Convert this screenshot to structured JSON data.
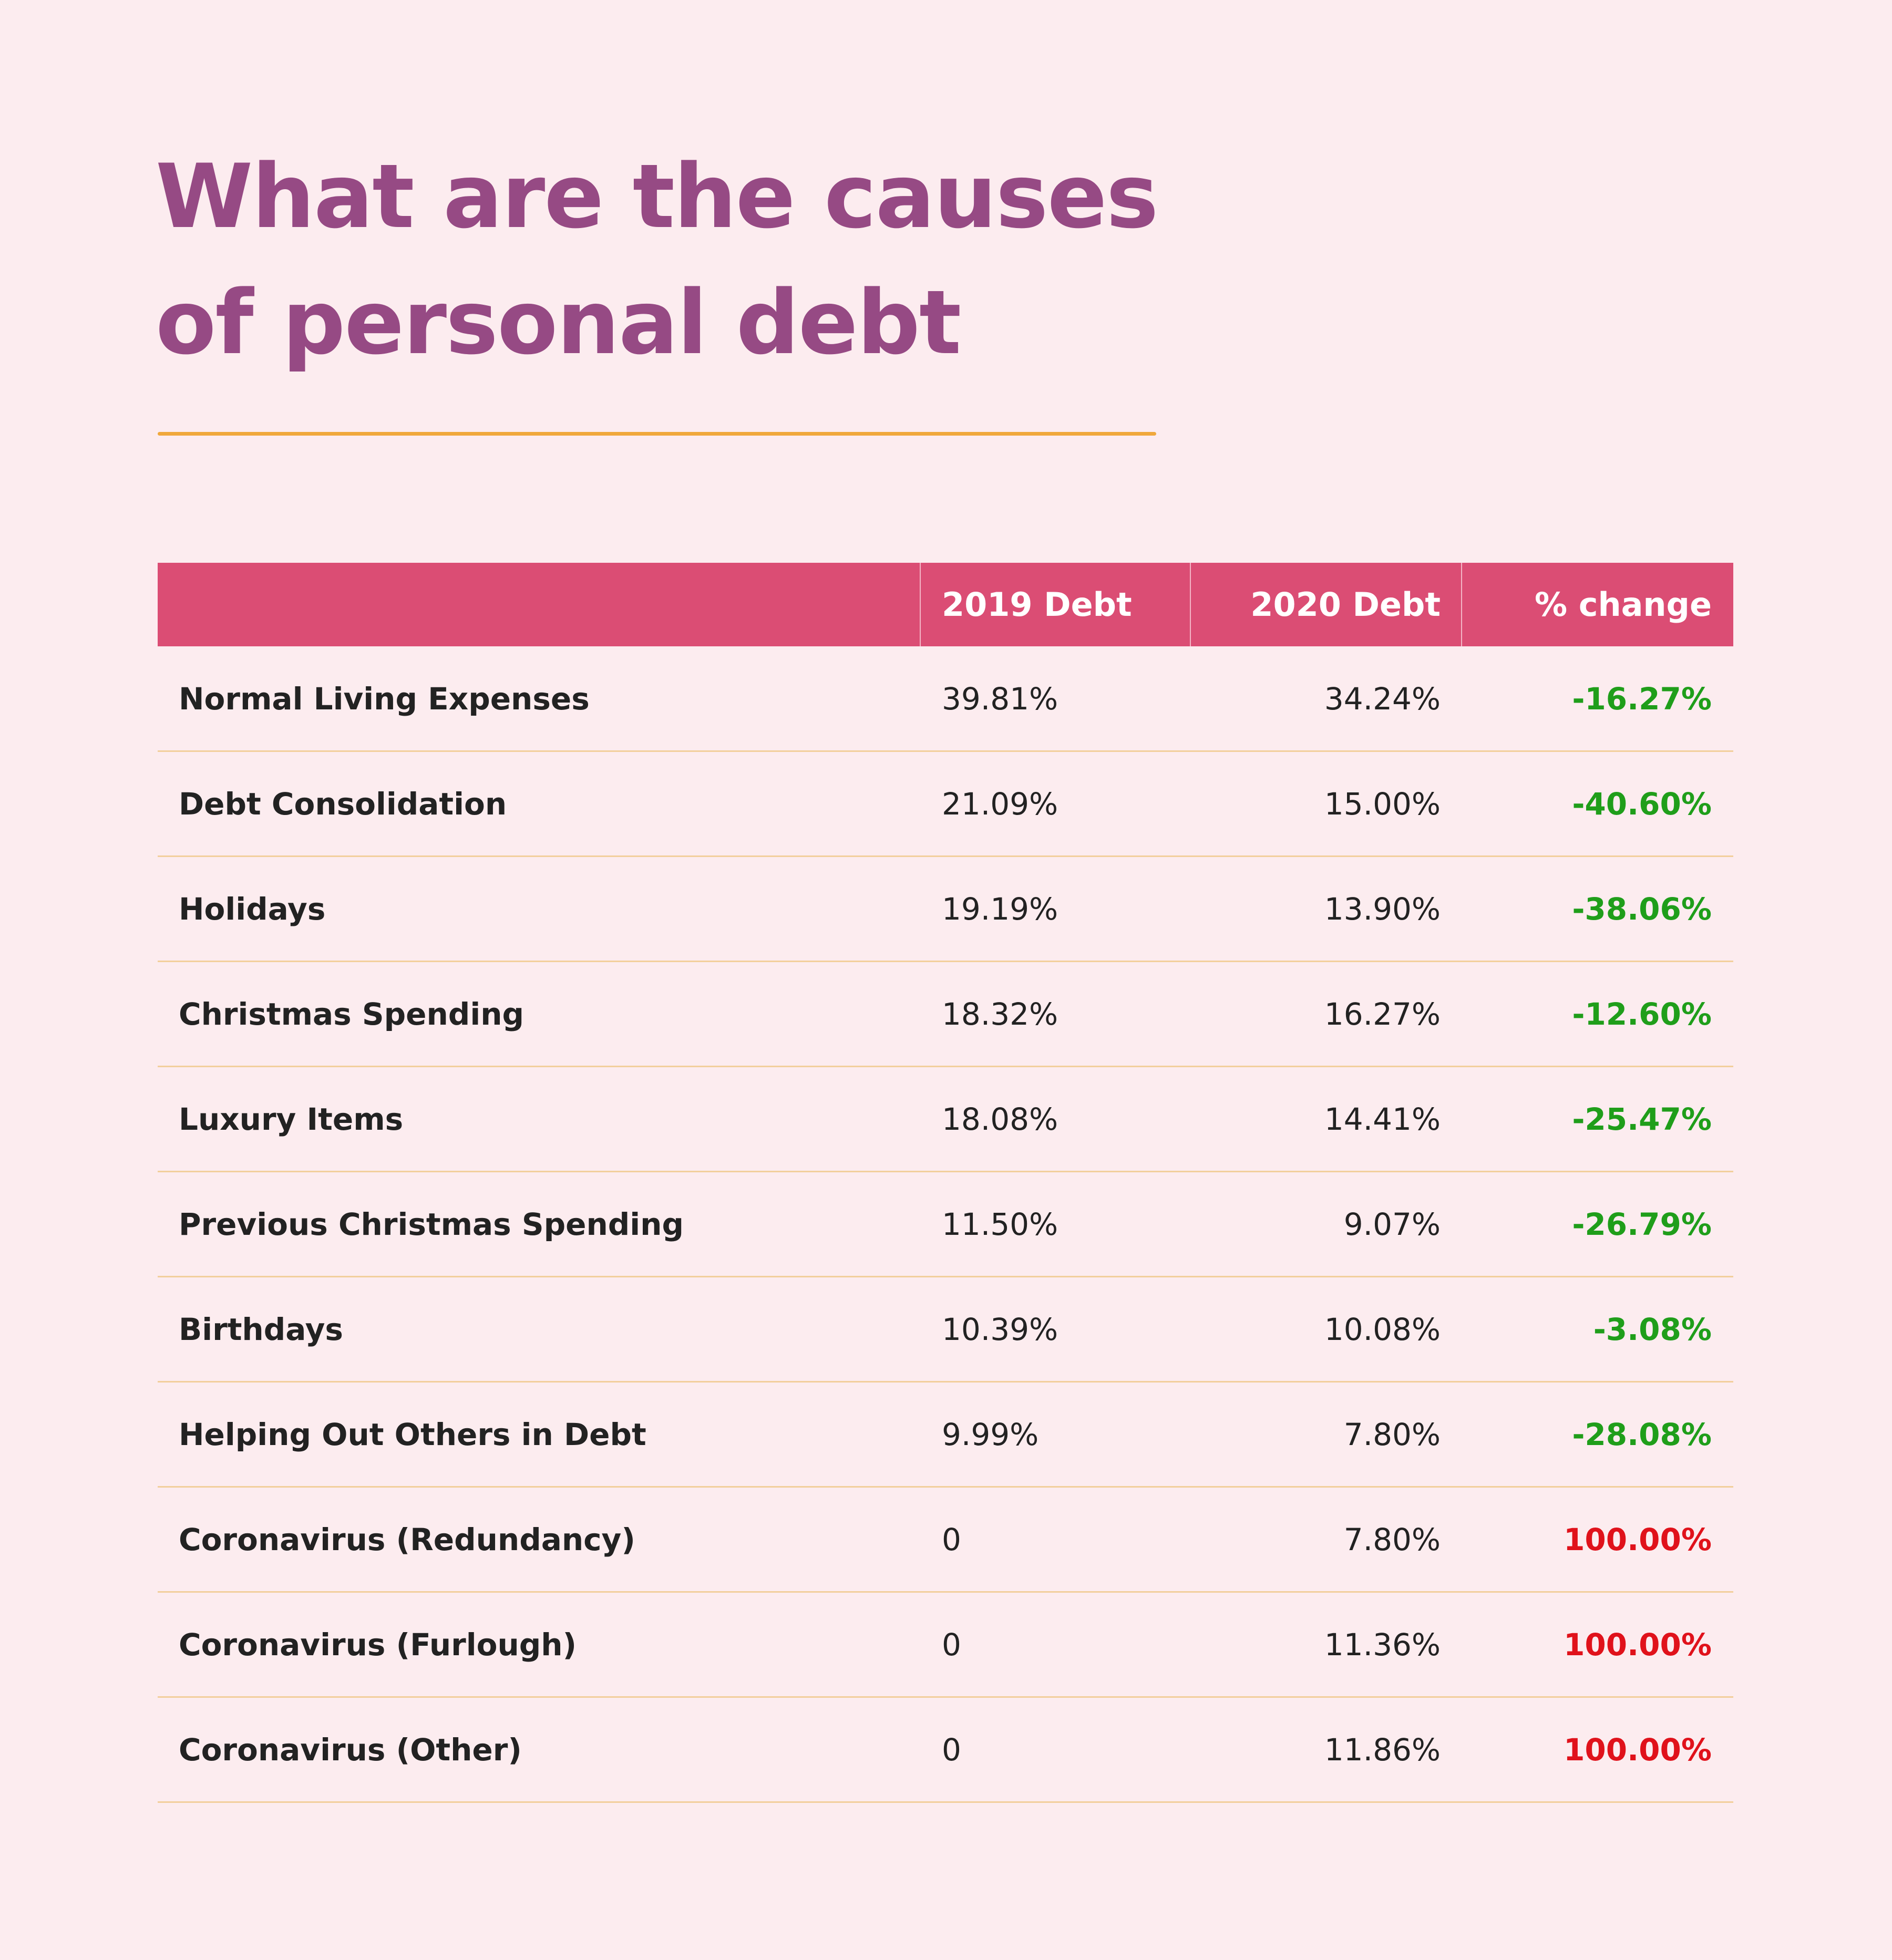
{
  "header": {
    "title": [
      "What are the causes",
      "of personal debt"
    ]
  },
  "table": {
    "columns": [
      "2019 Debt",
      "2020 Debt",
      "% change"
    ],
    "change_colors": {
      "decrease": "#1f9e1a",
      "increase": "#e0121b"
    },
    "rows": [
      [
        "Normal Living Expenses",
        "39.81%",
        "34.24%",
        "-16.27%"
      ],
      [
        "Debt Consolidation",
        "21.09%",
        "15.00%",
        "-40.60%"
      ],
      [
        "Holidays",
        "19.19%",
        "13.90%",
        "-38.06%"
      ],
      [
        "Christmas Spending",
        "18.32%",
        "16.27%",
        "-12.60%"
      ],
      [
        "Luxury Items",
        "18.08%",
        "14.41%",
        "-25.47%"
      ],
      [
        "Previous Christmas Spending",
        "11.50%",
        "9.07%",
        "-26.79%"
      ],
      [
        "Birthdays",
        "10.39%",
        "10.08%",
        "-3.08%"
      ],
      [
        "Helping Out Others in Debt",
        "9.99%",
        "7.80%",
        "-28.08%"
      ],
      [
        "Coronavirus (Redundancy)",
        "0",
        "7.80%",
        "100.00%"
      ],
      [
        "Coronavirus (Furlough)",
        "0",
        "11.36%",
        "100.00%"
      ],
      [
        "Coronavirus (Other)",
        "0",
        "11.86%",
        "100.00%"
      ]
    ]
  }
}
